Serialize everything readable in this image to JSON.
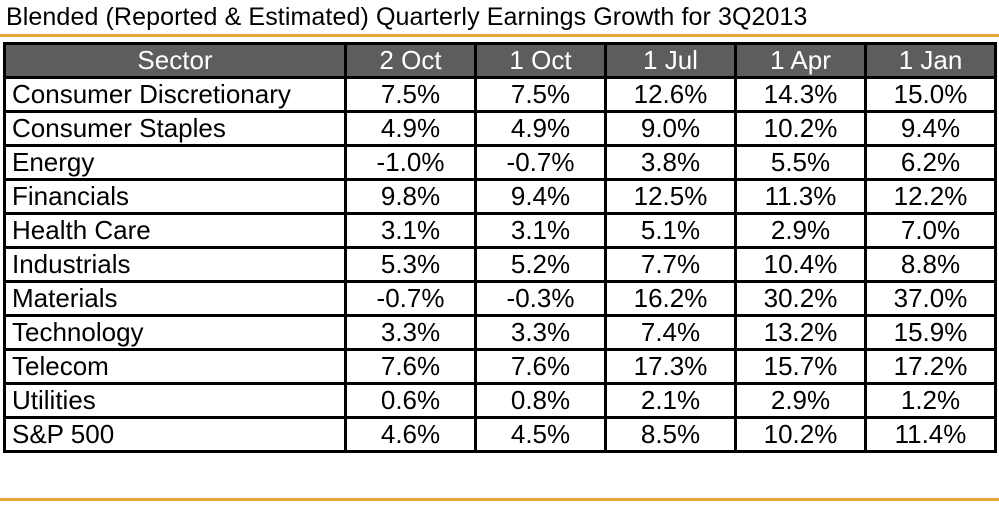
{
  "title": "Blended (Reported & Estimated) Quarterly Earnings Growth for 3Q2013",
  "accent_color": "#e8a33d",
  "header_color": "#5d5d5d",
  "table": {
    "columns": [
      "Sector",
      "2 Oct",
      "1 Oct",
      "1 Jul",
      "1 Apr",
      "1 Jan"
    ],
    "rows": [
      {
        "sector": "Consumer Discretionary",
        "values": [
          "7.5%",
          "7.5%",
          "12.6%",
          "14.3%",
          "15.0%"
        ]
      },
      {
        "sector": "Consumer Staples",
        "values": [
          "4.9%",
          "4.9%",
          "9.0%",
          "10.2%",
          "9.4%"
        ]
      },
      {
        "sector": "Energy",
        "values": [
          "-1.0%",
          "-0.7%",
          "3.8%",
          "5.5%",
          "6.2%"
        ]
      },
      {
        "sector": "Financials",
        "values": [
          "9.8%",
          "9.4%",
          "12.5%",
          "11.3%",
          "12.2%"
        ]
      },
      {
        "sector": "Health Care",
        "values": [
          "3.1%",
          "3.1%",
          "5.1%",
          "2.9%",
          "7.0%"
        ]
      },
      {
        "sector": "Industrials",
        "values": [
          "5.3%",
          "5.2%",
          "7.7%",
          "10.4%",
          "8.8%"
        ]
      },
      {
        "sector": "Materials",
        "values": [
          "-0.7%",
          "-0.3%",
          "16.2%",
          "30.2%",
          "37.0%"
        ]
      },
      {
        "sector": "Technology",
        "values": [
          "3.3%",
          "3.3%",
          "7.4%",
          "13.2%",
          "15.9%"
        ]
      },
      {
        "sector": "Telecom",
        "values": [
          "7.6%",
          "7.6%",
          "17.3%",
          "15.7%",
          "17.2%"
        ]
      },
      {
        "sector": "Utilities",
        "values": [
          "0.6%",
          "0.8%",
          "2.1%",
          "2.9%",
          "1.2%"
        ]
      },
      {
        "sector": "S&P 500",
        "values": [
          "4.6%",
          "4.5%",
          "8.5%",
          "10.2%",
          "11.4%"
        ]
      }
    ]
  }
}
